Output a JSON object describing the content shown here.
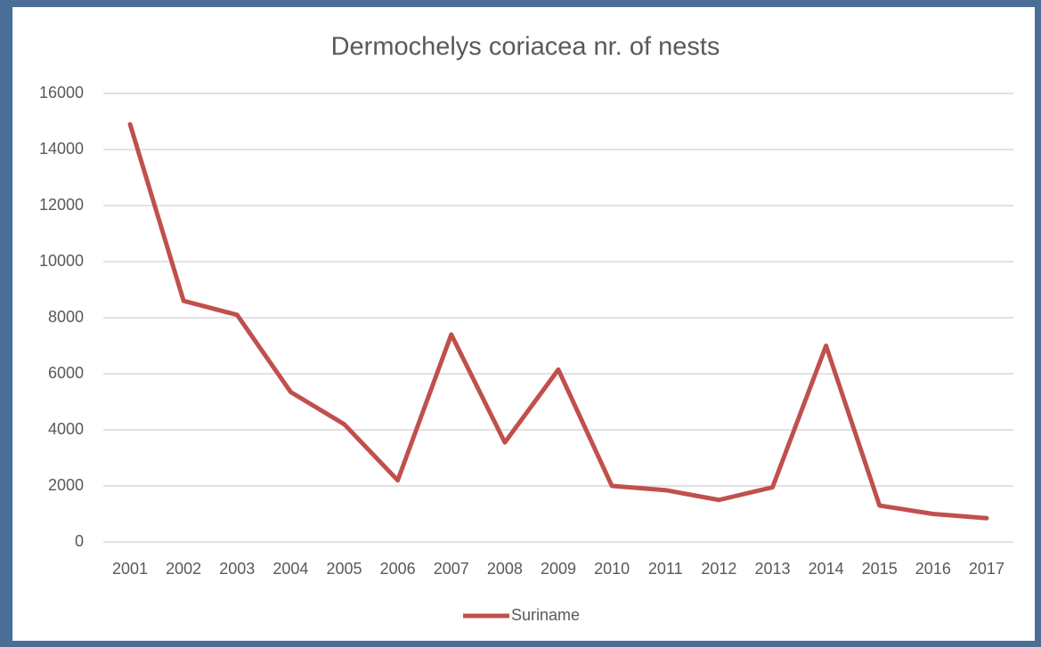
{
  "chart_data": {
    "type": "line",
    "title": "Dermochelys coriacea nr. of nests",
    "categories": [
      "2001",
      "2002",
      "2003",
      "2004",
      "2005",
      "2006",
      "2007",
      "2008",
      "2009",
      "2010",
      "2011",
      "2012",
      "2013",
      "2014",
      "2015",
      "2016",
      "2017"
    ],
    "series": [
      {
        "name": "Suriname",
        "color": "#c0504d",
        "values": [
          14900,
          8600,
          8100,
          5350,
          4200,
          2200,
          7400,
          3550,
          6150,
          2000,
          1850,
          1500,
          1950,
          7000,
          1300,
          1000,
          850
        ]
      }
    ],
    "ylim": [
      0,
      16000
    ],
    "yticks": [
      0,
      2000,
      4000,
      6000,
      8000,
      10000,
      12000,
      14000,
      16000
    ],
    "grid": true,
    "legend": "bottom"
  }
}
